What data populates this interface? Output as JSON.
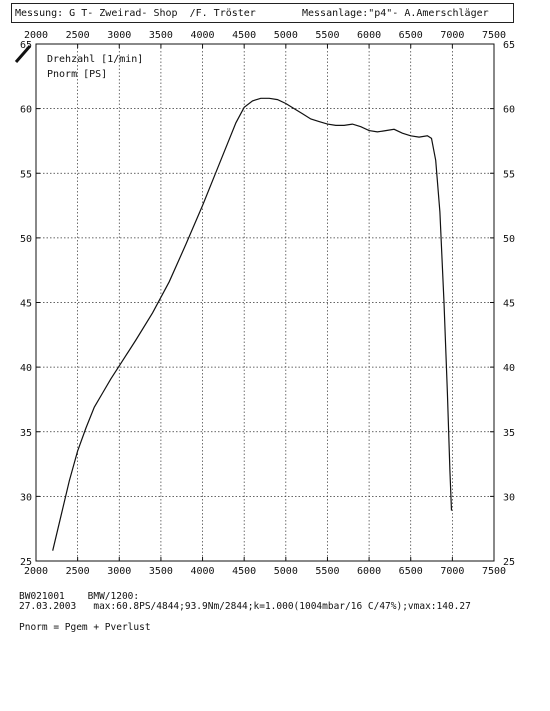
{
  "header": {
    "left_text": "Messung: G T- Zweirad- Shop  /F. Tröster",
    "right_text": "Messanlage:\"p4\"- A.Amerschläger"
  },
  "chart_data": {
    "type": "line",
    "xlabel": "Drehzahl [1/min]",
    "ylabel": "Pnorm [PS]",
    "xlim": [
      2000,
      7500
    ],
    "ylim": [
      25,
      65
    ],
    "x_ticks": [
      2000,
      2500,
      3000,
      3500,
      4000,
      4500,
      5000,
      5500,
      6000,
      6500,
      7000,
      7500
    ],
    "y_ticks": [
      25,
      30,
      35,
      40,
      45,
      50,
      55,
      60,
      65
    ],
    "grid": true,
    "series": [
      {
        "x": [
          2200,
          2300,
          2400,
          2500,
          2600,
          2700,
          2800,
          2900,
          3000,
          3200,
          3400,
          3600,
          3800,
          4000,
          4200,
          4400,
          4500,
          4600,
          4700,
          4800,
          4900,
          5000,
          5100,
          5200,
          5300,
          5400,
          5500,
          5600,
          5700,
          5800,
          5900,
          6000,
          6100,
          6200,
          6300,
          6400,
          6500,
          6600,
          6700,
          6750,
          6800,
          6850,
          6900,
          6940,
          6970,
          6990
        ],
        "y": [
          25.8,
          28.5,
          31.2,
          33.5,
          35.3,
          36.9,
          38.0,
          39.1,
          40.1,
          42.1,
          44.2,
          46.6,
          49.5,
          52.5,
          55.7,
          58.9,
          60.1,
          60.6,
          60.8,
          60.8,
          60.7,
          60.4,
          60.0,
          59.6,
          59.2,
          59.0,
          58.8,
          58.7,
          58.7,
          58.8,
          58.6,
          58.3,
          58.2,
          58.3,
          58.4,
          58.1,
          57.9,
          57.8,
          57.9,
          57.7,
          56.0,
          52.0,
          45.0,
          38.0,
          32.0,
          28.9
        ]
      }
    ]
  },
  "footer": {
    "line1": "BW021001    BMW/1200:",
    "line2": "27.03.2003   max:60.8PS/4844;93.9Nm/2844;k=1.000(1004mbar/16 C/47%);vmax:140.27",
    "line3": "Pnorm = Pgem + Pverlust"
  }
}
